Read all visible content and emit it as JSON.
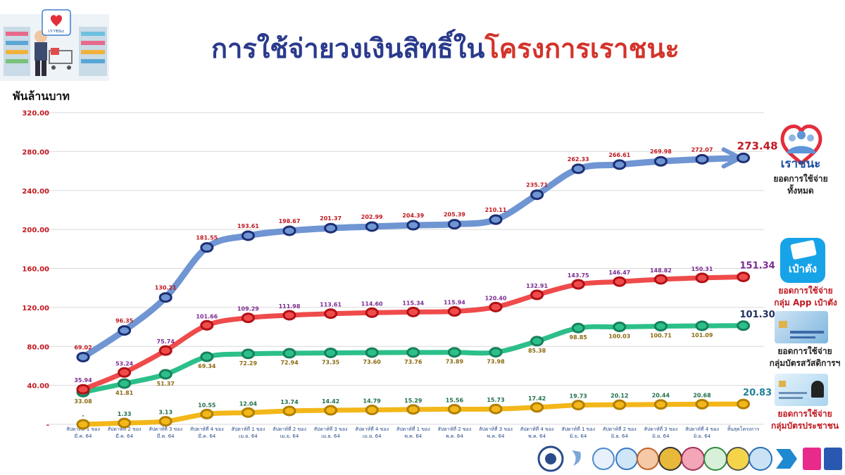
{
  "header": {
    "title_part1": "การใช้จ่ายวงเงินสิทธิ์ใน",
    "title_part2": "โครงการเราชนะ",
    "unit": "พันล้านบาท"
  },
  "legend": {
    "total": {
      "brand": "เราชนะ",
      "line1": "ยอดการใช้จ่าย",
      "line2": "ทั้งหมด"
    },
    "paotang": {
      "brand": "เป๋าตัง",
      "line1": "ยอดการใช้จ่าย",
      "line2": "กลุ่ม App เป๋าตัง"
    },
    "welfare": {
      "line1": "ยอดการใช้จ่าย",
      "line2": "กลุ่มบัตรสวัสดิการฯ"
    },
    "idcard": {
      "line1": "ยอดการใช้จ่าย",
      "line2": "กลุ่มบัตรประชาชน"
    }
  },
  "colors": {
    "total": "#6f95d3",
    "paotang": "#ef4b4b",
    "welfare": "#2cbf8a",
    "idcard": "#f3b71a",
    "title_blue": "#2a3a8c",
    "title_red": "#d3332a"
  },
  "chart_data": {
    "type": "line",
    "ylim": [
      0,
      320
    ],
    "yticks": [
      "-",
      "40.00",
      "80.00",
      "120.00",
      "160.00",
      "200.00",
      "240.00",
      "280.00",
      "320.00"
    ],
    "x": [
      [
        "สัปดาห์ที่ 1 ของ",
        "มี.ค. 64"
      ],
      [
        "สัปดาห์ที่ 2 ของ",
        "มี.ค. 64"
      ],
      [
        "สัปดาห์ที่ 3 ของ",
        "มี.ค. 64"
      ],
      [
        "สัปดาห์ที่ 4 ของ",
        "มี.ค. 64"
      ],
      [
        "สัปดาห์ที่ 1 ของ",
        "เม.ย. 64"
      ],
      [
        "สัปดาห์ที่ 2 ของ",
        "เม.ย. 64"
      ],
      [
        "สัปดาห์ที่ 3 ของ",
        "เม.ย. 64"
      ],
      [
        "สัปดาห์ที่ 4 ของ",
        "เม.ย. 64"
      ],
      [
        "สัปดาห์ที่ 1 ของ",
        "พ.ค. 64"
      ],
      [
        "สัปดาห์ที่ 2 ของ",
        "พ.ค. 64"
      ],
      [
        "สัปดาห์ที่ 3 ของ",
        "พ.ค. 64"
      ],
      [
        "สัปดาห์ที่ 4 ของ",
        "พ.ค. 64"
      ],
      [
        "สัปดาห์ที่ 1 ของ",
        "มิ.ย. 64"
      ],
      [
        "สัปดาห์ที่ 2 ของ",
        "มิ.ย. 64"
      ],
      [
        "สัปดาห์ที่ 3 ของ",
        "มิ.ย. 64"
      ],
      [
        "สัปดาห์ที่ 4 ของ",
        "มิ.ย. 64"
      ],
      [
        "สิ้นสุดโครงการ",
        ""
      ]
    ],
    "series": [
      {
        "key": "total",
        "values": [
          69.02,
          96.35,
          130.21,
          181.55,
          193.61,
          198.67,
          201.37,
          202.99,
          204.39,
          205.39,
          210.11,
          235.71,
          262.33,
          266.61,
          269.98,
          272.07,
          273.48
        ]
      },
      {
        "key": "paotang",
        "values": [
          35.94,
          53.24,
          75.74,
          101.66,
          109.29,
          111.98,
          113.61,
          114.6,
          115.34,
          115.94,
          120.4,
          132.91,
          143.75,
          146.47,
          148.82,
          150.31,
          151.34
        ]
      },
      {
        "key": "welfare",
        "values": [
          33.08,
          41.81,
          51.37,
          69.34,
          72.29,
          72.94,
          73.35,
          73.6,
          73.76,
          73.89,
          73.98,
          85.38,
          98.85,
          100.03,
          100.71,
          101.09,
          101.3
        ]
      },
      {
        "key": "idcard",
        "values": [
          0,
          1.33,
          3.13,
          10.55,
          12.04,
          13.74,
          14.42,
          14.79,
          15.29,
          15.56,
          15.73,
          17.42,
          19.73,
          20.12,
          20.44,
          20.68,
          20.83
        ]
      }
    ],
    "grid": true
  }
}
